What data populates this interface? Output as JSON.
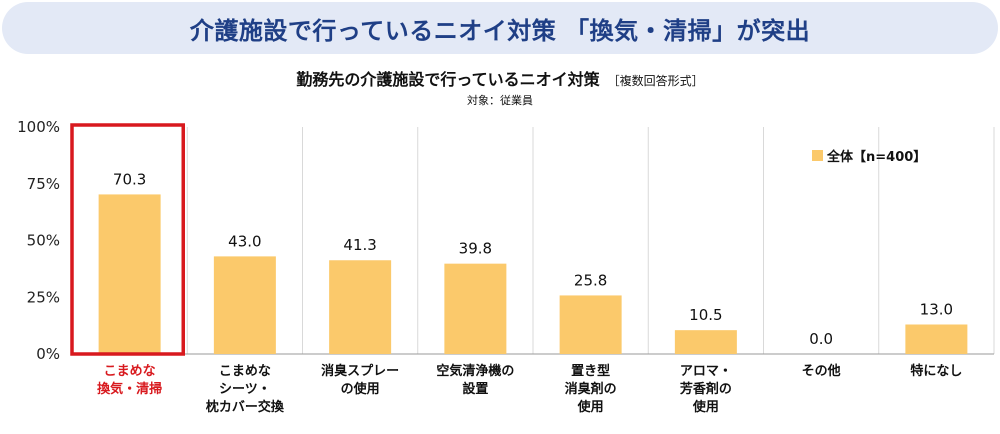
{
  "banner": {
    "title": "介護施設で行っているニオイ対策 「換気・清掃」が突出"
  },
  "chart_data": {
    "type": "bar",
    "title": "勤務先の介護施設で行っているニオイ対策",
    "title_note": "［複数回答形式］",
    "subtitle": "対象：従業員",
    "categories": [
      [
        "こまめな",
        "換気・清掃"
      ],
      [
        "こまめな",
        "シーツ・",
        "枕カバー交換"
      ],
      [
        "消臭スプレー",
        "の使用"
      ],
      [
        "空気清浄機の",
        "設置"
      ],
      [
        "置き型",
        "消臭剤の",
        "使用"
      ],
      [
        "アロマ・",
        "芳香剤の",
        "使用"
      ],
      [
        "その他"
      ],
      [
        "特になし"
      ]
    ],
    "series": [
      {
        "name": "全体【n=400】",
        "values": [
          70.3,
          43.0,
          41.3,
          39.8,
          25.8,
          10.5,
          0.0,
          13.0
        ]
      }
    ],
    "value_labels": [
      "70.3",
      "43.0",
      "41.3",
      "39.8",
      "25.8",
      "10.5",
      "0.0",
      "13.0"
    ],
    "ylim": [
      0,
      100
    ],
    "yticks": [
      "0%",
      "25%",
      "50%",
      "75%",
      "100%"
    ],
    "ytick_values": [
      0,
      25,
      50,
      75,
      100
    ],
    "highlight_index": 0,
    "legend_placement": "top-right",
    "grid": "vertical separators",
    "colors": {
      "bar": "#fbc96b",
      "highlight": "#d8191e",
      "grid": "#d9d9d9",
      "axis": "#9a9a9a"
    }
  }
}
